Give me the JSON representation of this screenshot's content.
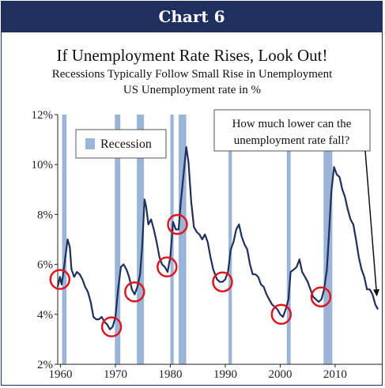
{
  "header": {
    "label": "Chart 6"
  },
  "chart_data": {
    "type": "line",
    "title": "If Unemployment Rate Rises, Look Out!",
    "subtitle": "Recessions Typically Follow Small Rise in Unemployment",
    "subtitle2": "US Unemployment rate in %",
    "xlim": [
      1959.5,
      2018.5
    ],
    "ylim": [
      2,
      12
    ],
    "x_ticks": [
      1960,
      1970,
      1980,
      1990,
      2000,
      2010
    ],
    "y_ticks": [
      {
        "value": 2,
        "label": "2%"
      },
      {
        "value": 4,
        "label": "4%"
      },
      {
        "value": 6,
        "label": "6%"
      },
      {
        "value": 8,
        "label": "8%"
      },
      {
        "value": 10,
        "label": "10%"
      },
      {
        "value": 12,
        "label": "12%"
      }
    ],
    "legend": {
      "label": "Recession",
      "position": "top-left",
      "color": "#9bb5d8"
    },
    "recessions": [
      [
        1960.3,
        1961.1
      ],
      [
        1969.9,
        1970.9
      ],
      [
        1973.9,
        1975.2
      ],
      [
        1980.0,
        1980.6
      ],
      [
        1981.5,
        1982.9
      ],
      [
        1990.6,
        1991.2
      ],
      [
        2001.2,
        2001.9
      ],
      [
        2007.9,
        2009.5
      ]
    ],
    "series": [
      {
        "color": "#1f2f5e",
        "points": [
          [
            1959.5,
            5.1
          ],
          [
            1959.9,
            5.5
          ],
          [
            1960.2,
            5.2
          ],
          [
            1960.5,
            5.6
          ],
          [
            1960.9,
            6.3
          ],
          [
            1961.3,
            7.0
          ],
          [
            1961.7,
            6.7
          ],
          [
            1962.0,
            5.8
          ],
          [
            1962.5,
            5.5
          ],
          [
            1963.0,
            5.7
          ],
          [
            1963.5,
            5.6
          ],
          [
            1964.0,
            5.4
          ],
          [
            1964.5,
            5.1
          ],
          [
            1965.0,
            4.9
          ],
          [
            1965.5,
            4.5
          ],
          [
            1966.0,
            3.9
          ],
          [
            1966.5,
            3.8
          ],
          [
            1967.0,
            3.8
          ],
          [
            1967.5,
            3.9
          ],
          [
            1968.0,
            3.7
          ],
          [
            1968.5,
            3.6
          ],
          [
            1969.0,
            3.4
          ],
          [
            1969.5,
            3.5
          ],
          [
            1970.0,
            3.9
          ],
          [
            1970.5,
            5.0
          ],
          [
            1971.0,
            5.9
          ],
          [
            1971.5,
            6.0
          ],
          [
            1972.0,
            5.8
          ],
          [
            1972.5,
            5.5
          ],
          [
            1973.0,
            5.0
          ],
          [
            1973.5,
            4.8
          ],
          [
            1974.0,
            5.1
          ],
          [
            1974.5,
            5.6
          ],
          [
            1974.9,
            6.8
          ],
          [
            1975.3,
            8.6
          ],
          [
            1975.6,
            8.3
          ],
          [
            1976.0,
            7.6
          ],
          [
            1976.5,
            7.8
          ],
          [
            1977.0,
            7.4
          ],
          [
            1977.5,
            6.9
          ],
          [
            1978.0,
            6.3
          ],
          [
            1978.5,
            6.0
          ],
          [
            1979.0,
            5.9
          ],
          [
            1979.5,
            5.7
          ],
          [
            1980.0,
            6.3
          ],
          [
            1980.5,
            7.7
          ],
          [
            1981.0,
            7.4
          ],
          [
            1981.5,
            7.4
          ],
          [
            1981.9,
            8.5
          ],
          [
            1982.5,
            9.8
          ],
          [
            1982.9,
            10.7
          ],
          [
            1983.3,
            10.1
          ],
          [
            1983.8,
            8.5
          ],
          [
            1984.3,
            7.5
          ],
          [
            1984.8,
            7.3
          ],
          [
            1985.3,
            7.2
          ],
          [
            1985.8,
            7.0
          ],
          [
            1986.3,
            7.2
          ],
          [
            1986.8,
            6.9
          ],
          [
            1987.3,
            6.3
          ],
          [
            1987.8,
            5.8
          ],
          [
            1988.5,
            5.4
          ],
          [
            1989.0,
            5.3
          ],
          [
            1989.5,
            5.3
          ],
          [
            1990.0,
            5.4
          ],
          [
            1990.5,
            5.7
          ],
          [
            1991.0,
            6.6
          ],
          [
            1991.5,
            6.9
          ],
          [
            1992.0,
            7.4
          ],
          [
            1992.5,
            7.6
          ],
          [
            1993.0,
            7.1
          ],
          [
            1993.5,
            6.8
          ],
          [
            1994.0,
            6.6
          ],
          [
            1994.5,
            6.0
          ],
          [
            1995.0,
            5.6
          ],
          [
            1995.5,
            5.6
          ],
          [
            1996.0,
            5.5
          ],
          [
            1996.5,
            5.2
          ],
          [
            1997.0,
            5.1
          ],
          [
            1997.5,
            4.8
          ],
          [
            1998.0,
            4.6
          ],
          [
            1998.5,
            4.4
          ],
          [
            1999.0,
            4.3
          ],
          [
            1999.5,
            4.2
          ],
          [
            2000.0,
            4.0
          ],
          [
            2000.5,
            3.9
          ],
          [
            2001.0,
            4.2
          ],
          [
            2001.5,
            4.6
          ],
          [
            2001.9,
            5.7
          ],
          [
            2002.5,
            5.8
          ],
          [
            2003.0,
            5.9
          ],
          [
            2003.5,
            6.2
          ],
          [
            2004.0,
            5.7
          ],
          [
            2004.5,
            5.5
          ],
          [
            2005.0,
            5.3
          ],
          [
            2005.5,
            5.0
          ],
          [
            2006.0,
            4.7
          ],
          [
            2006.5,
            4.6
          ],
          [
            2007.0,
            4.5
          ],
          [
            2007.5,
            4.6
          ],
          [
            2008.0,
            5.0
          ],
          [
            2008.5,
            5.8
          ],
          [
            2008.9,
            7.3
          ],
          [
            2009.3,
            8.9
          ],
          [
            2009.8,
            9.9
          ],
          [
            2010.3,
            9.6
          ],
          [
            2010.8,
            9.5
          ],
          [
            2011.3,
            9.0
          ],
          [
            2011.8,
            8.7
          ],
          [
            2012.3,
            8.2
          ],
          [
            2012.8,
            7.8
          ],
          [
            2013.3,
            7.6
          ],
          [
            2013.8,
            7.0
          ],
          [
            2014.3,
            6.3
          ],
          [
            2014.8,
            5.8
          ],
          [
            2015.3,
            5.5
          ],
          [
            2015.8,
            5.0
          ],
          [
            2016.3,
            5.0
          ],
          [
            2016.8,
            4.8
          ],
          [
            2017.3,
            4.4
          ],
          [
            2017.8,
            4.2
          ]
        ]
      }
    ],
    "circled_points": [
      [
        1959.9,
        5.4
      ],
      [
        1969.3,
        3.5
      ],
      [
        1973.5,
        4.9
      ],
      [
        1979.4,
        5.9
      ],
      [
        1981.3,
        7.6
      ],
      [
        1989.5,
        5.3
      ],
      [
        2000.2,
        4.0
      ],
      [
        2007.4,
        4.7
      ]
    ],
    "annotation": {
      "text_line1": "How much lower can the",
      "text_line2": "unemployment rate fall?",
      "target": [
        2017.6,
        4.4
      ]
    }
  }
}
